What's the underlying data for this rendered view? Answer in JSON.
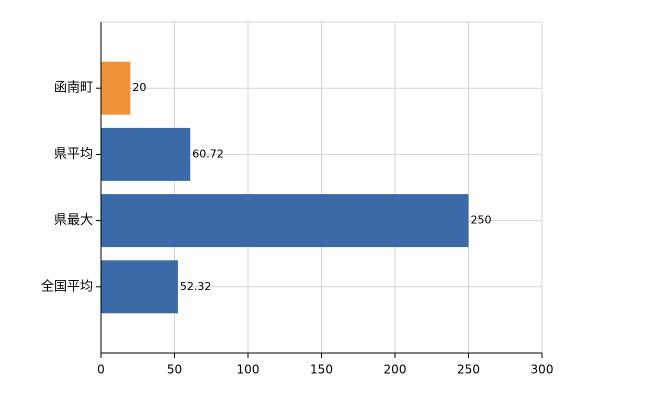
{
  "chart_data": {
    "type": "bar",
    "orientation": "horizontal",
    "categories": [
      "函南町",
      "県平均",
      "県最大",
      "全国平均"
    ],
    "values": [
      20,
      60.72,
      250,
      52.32
    ],
    "colors": [
      "#f0923a",
      "#3a6aa8",
      "#3a6aa8",
      "#3a6aa8"
    ],
    "xlim": [
      0,
      300
    ],
    "xticks": [
      0,
      50,
      100,
      150,
      200,
      250,
      300
    ],
    "grid": true
  }
}
